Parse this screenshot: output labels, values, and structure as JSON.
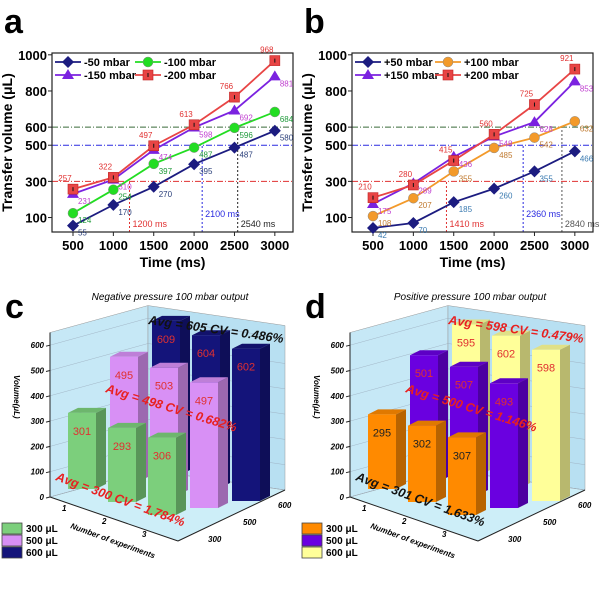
{
  "chart_data": [
    {
      "panel": "a",
      "type": "line",
      "xlabel": "Time (ms)",
      "ylabel": "Transfer volume (μL)",
      "x": [
        500,
        1000,
        1500,
        2000,
        2500,
        3000
      ],
      "xticks": [
        "500",
        "1000",
        "1500",
        "2000",
        "2500",
        "3000"
      ],
      "yticks": [
        "100",
        "300",
        "500",
        "600",
        "800",
        "1000"
      ],
      "xlim": [
        240,
        3225
      ],
      "ylim": [
        20,
        1010
      ],
      "legend_placement": "top-left",
      "series": [
        {
          "name": "-50 mbar",
          "color": "#1c1c80",
          "label_color": "#2a3f7a",
          "marker": "diamond",
          "values": [
            55,
            170,
            270,
            395,
            487,
            580
          ]
        },
        {
          "name": "-100 mbar",
          "color": "#22dd22",
          "label_color": "#1f9a3a",
          "marker": "circle",
          "values": [
            124,
            254,
            397,
            487,
            596,
            684
          ]
        },
        {
          "name": "-150 mbar",
          "color": "#7b22e0",
          "label_color": "#c040d0",
          "marker": "triangle",
          "values": [
            231,
            310,
            474,
            598,
            692,
            881
          ]
        },
        {
          "name": "-200 mbar",
          "color": "#e84545",
          "label_color": "#e03030",
          "marker": "square",
          "values": [
            257,
            322,
            497,
            613,
            766,
            968
          ]
        }
      ],
      "reference_lines": [
        {
          "y": 300,
          "x": 1200,
          "label": "1200 ms",
          "hcolor": "#e03030",
          "vcolor": "#e03030"
        },
        {
          "y": 500,
          "x": 2100,
          "label": "2100 ms",
          "hcolor": "#2a2ae0",
          "vcolor": "#2a2ae0"
        },
        {
          "y": 600,
          "x": 2540,
          "label": "2540 ms",
          "hcolor": "#3a6b3a",
          "vcolor": "#222222"
        }
      ]
    },
    {
      "panel": "b",
      "type": "line",
      "xlabel": "Time (ms)",
      "ylabel": "Transfer volume (μL)",
      "x": [
        500,
        1000,
        1500,
        2000,
        2500,
        3000
      ],
      "xticks": [
        "500",
        "1000",
        "1500",
        "2000",
        "2500",
        "3000"
      ],
      "yticks": [
        "100",
        "300",
        "500",
        "600",
        "800",
        "1000"
      ],
      "xlim": [
        240,
        3225
      ],
      "ylim": [
        20,
        1010
      ],
      "legend_placement": "top-left",
      "series": [
        {
          "name": "+50 mbar",
          "color": "#1c1c80",
          "label_color": "#3a7ab0",
          "marker": "diamond",
          "values": [
            42,
            70,
            185,
            260,
            355,
            466
          ]
        },
        {
          "name": "+100 mbar",
          "color": "#f39a2a",
          "label_color": "#c07a30",
          "marker": "circle",
          "values": [
            108,
            207,
            355,
            485,
            542,
            632
          ]
        },
        {
          "name": "+150 mbar",
          "color": "#7b22e0",
          "label_color": "#c040d0",
          "marker": "triangle",
          "values": [
            175,
            289,
            436,
            548,
            628,
            853
          ]
        },
        {
          "name": "+200 mbar",
          "color": "#e84545",
          "label_color": "#e03030",
          "marker": "square",
          "values": [
            210,
            280,
            415,
            560,
            725,
            921
          ]
        }
      ],
      "reference_lines": [
        {
          "y": 300,
          "x": 1410,
          "label": "1410 ms",
          "hcolor": "#e03030",
          "vcolor": "#e03030"
        },
        {
          "y": 500,
          "x": 2360,
          "label": "2360 ms",
          "hcolor": "#2a2ae0",
          "vcolor": "#2a2ae0"
        },
        {
          "y": 600,
          "x": 2840,
          "label": "2840 ms",
          "hcolor": "#3a6b3a",
          "vcolor": "#555555"
        }
      ]
    },
    {
      "panel": "c",
      "type": "bar",
      "subtype": "3d",
      "title": "Negative pressure 100 mbar output",
      "ylabel": "Volume(μL)",
      "xlabel": "Number of experiments",
      "categories": [
        "1",
        "2",
        "3"
      ],
      "yticks": [
        "0",
        "100",
        "200",
        "300",
        "400",
        "500",
        "600"
      ],
      "ylim": [
        0,
        650
      ],
      "depth_ticks": [
        "300",
        "500",
        "600"
      ],
      "legend_placement": "bottom-left",
      "series": [
        {
          "name": "300 μL",
          "color": "#7ccf7c",
          "label_color": "#e03030",
          "values": [
            301,
            293,
            306
          ],
          "annotation": "Avg = 300 CV = 1.784%",
          "annotation_color": "#e82020"
        },
        {
          "name": "500 μL",
          "color": "#d890f5",
          "label_color": "#e03030",
          "values": [
            495,
            503,
            497
          ],
          "annotation": "Avg = 498 CV = 0.682%",
          "annotation_color": "#e82020"
        },
        {
          "name": "600 μL",
          "color": "#14147a",
          "label_color": "#e03030",
          "values": [
            609,
            604,
            602
          ],
          "annotation": "Avg = 605 CV = 0.486%",
          "annotation_color": "#111111"
        }
      ]
    },
    {
      "panel": "d",
      "type": "bar",
      "subtype": "3d",
      "title": "Positive pressure 100 mbar output",
      "ylabel": "Volume(μL)",
      "xlabel": "Number of experiments",
      "categories": [
        "1",
        "2",
        "3"
      ],
      "yticks": [
        "0",
        "100",
        "200",
        "300",
        "400",
        "500",
        "600"
      ],
      "ylim": [
        0,
        650
      ],
      "depth_ticks": [
        "300",
        "500",
        "600"
      ],
      "legend_placement": "bottom-left",
      "series": [
        {
          "name": "300 μL",
          "color": "#ff8a00",
          "label_color": "#222222",
          "values": [
            295,
            302,
            307
          ],
          "annotation": "Avg = 301 CV = 1.633%",
          "annotation_color": "#111111"
        },
        {
          "name": "500 μL",
          "color": "#6a00e0",
          "label_color": "#e03030",
          "values": [
            501,
            507,
            493
          ],
          "annotation": "Avg = 500 CV = 1.146%",
          "annotation_color": "#e82020"
        },
        {
          "name": "600 μL",
          "color": "#ffff99",
          "label_color": "#e03030",
          "values": [
            595,
            602,
            598
          ],
          "annotation": "Avg = 598 CV = 0.479%",
          "annotation_color": "#e82020"
        }
      ]
    }
  ]
}
